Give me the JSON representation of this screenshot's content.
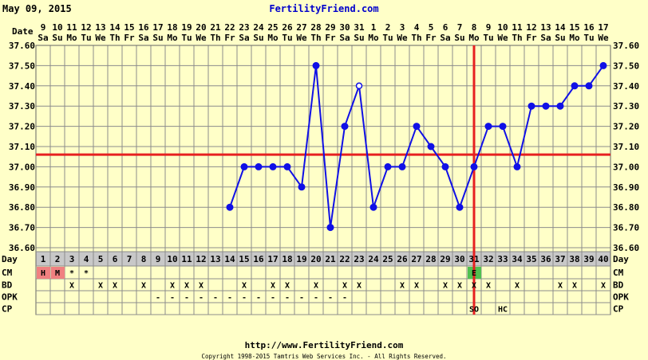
{
  "header": {
    "date": "May 09, 2015",
    "site": "FertilityFriend.com"
  },
  "footer": {
    "url": "http://www.FertilityFriend.com",
    "copyright": "Copyright 1998-2015 Tamtris Web Services Inc. - All Rights Reserved."
  },
  "row_labels": {
    "date": "Date",
    "day": "Day",
    "cm": "CM",
    "bd": "BD",
    "opk": "OPK",
    "cp": "CP"
  },
  "colors": {
    "background": "#ffffc8",
    "plot": "#ffffc8",
    "grid": "#8c8c8c",
    "line": "#1010e6",
    "coverline": "#e62020",
    "ovulation": "#e62020",
    "day_header": "#c8c8c8",
    "cm_m": "#f08080",
    "cm_e": "#50c050",
    "title": "#0000cc"
  },
  "chart_data": {
    "type": "line",
    "title": "",
    "xlabel": "Day",
    "ylabel": "",
    "ylim": [
      36.6,
      37.6
    ],
    "y_ticks": [
      "36.60",
      "36.70",
      "36.80",
      "36.90",
      "37.00",
      "37.10",
      "37.20",
      "37.30",
      "37.40",
      "37.50",
      "37.60"
    ],
    "days": [
      1,
      2,
      3,
      4,
      5,
      6,
      7,
      8,
      9,
      10,
      11,
      12,
      13,
      14,
      15,
      16,
      17,
      18,
      19,
      20,
      21,
      22,
      23,
      24,
      25,
      26,
      27,
      28,
      29,
      30,
      31,
      32,
      33,
      34,
      35,
      36,
      37,
      38,
      39,
      40
    ],
    "dates": [
      "9",
      "10",
      "11",
      "12",
      "13",
      "14",
      "15",
      "16",
      "17",
      "18",
      "19",
      "20",
      "21",
      "22",
      "23",
      "24",
      "25",
      "26",
      "27",
      "28",
      "29",
      "30",
      "31",
      "1",
      "2",
      "3",
      "4",
      "5",
      "6",
      "7",
      "8",
      "9",
      "10",
      "11",
      "12",
      "13",
      "14",
      "15",
      "16",
      "17"
    ],
    "weekdays": [
      "Sa",
      "Su",
      "Mo",
      "Tu",
      "We",
      "Th",
      "Fr",
      "Sa",
      "Su",
      "Mo",
      "Tu",
      "We",
      "Th",
      "Fr",
      "Sa",
      "Su",
      "Mo",
      "Tu",
      "We",
      "Th",
      "Fr",
      "Sa",
      "Su",
      "Mo",
      "Tu",
      "We",
      "Th",
      "Fr",
      "Sa",
      "Su",
      "Mo",
      "Tu",
      "We",
      "Th",
      "Fr",
      "Sa",
      "Su",
      "Mo",
      "Tu",
      "We"
    ],
    "temps": [
      null,
      null,
      null,
      null,
      null,
      null,
      null,
      null,
      null,
      null,
      null,
      null,
      null,
      36.8,
      37.0,
      37.0,
      37.0,
      37.0,
      36.9,
      37.5,
      36.7,
      37.2,
      37.4,
      36.8,
      37.0,
      37.0,
      37.2,
      37.1,
      37.0,
      36.8,
      37.0,
      37.2,
      37.2,
      37.0,
      37.3,
      37.3,
      37.3,
      37.4,
      37.4,
      37.5
    ],
    "open_points": [
      23
    ],
    "coverline": 37.06,
    "ovulation_day": 31,
    "cm": [
      "H",
      "M",
      "*",
      "*",
      "",
      "",
      "",
      "",
      "",
      "",
      "",
      "",
      "",
      "",
      "",
      "",
      "",
      "",
      "",
      "",
      "",
      "",
      "",
      "",
      "",
      "",
      "",
      "",
      "",
      "",
      "E",
      "",
      "",
      "",
      "",
      "",
      "",
      "",
      "",
      ""
    ],
    "bd": [
      "",
      "",
      "X",
      "",
      "X",
      "X",
      "",
      "X",
      "",
      "X",
      "X",
      "X",
      "",
      "",
      "X",
      "",
      "X",
      "X",
      "",
      "X",
      "",
      "X",
      "X",
      "",
      "",
      "X",
      "X",
      "",
      "X",
      "X",
      "X",
      "X",
      "",
      "X",
      "",
      "",
      "X",
      "X",
      "",
      "X"
    ],
    "opk": [
      "",
      "",
      "",
      "",
      "",
      "",
      "",
      "",
      "-",
      "-",
      "-",
      "-",
      "-",
      "-",
      "-",
      "-",
      "-",
      "-",
      "-",
      "-",
      "-",
      "-",
      "",
      "",
      "",
      "",
      "",
      "",
      "",
      "",
      "",
      "",
      "",
      "",
      "",
      "",
      "",
      "",
      "",
      ""
    ],
    "cp": [
      "",
      "",
      "",
      "",
      "",
      "",
      "",
      "",
      "",
      "",
      "",
      "",
      "",
      "",
      "",
      "",
      "",
      "",
      "",
      "",
      "",
      "",
      "",
      "",
      "",
      "",
      "",
      "",
      "",
      "",
      "SO",
      "",
      "HC",
      "",
      "",
      "",
      "",
      "",
      "",
      ""
    ]
  }
}
